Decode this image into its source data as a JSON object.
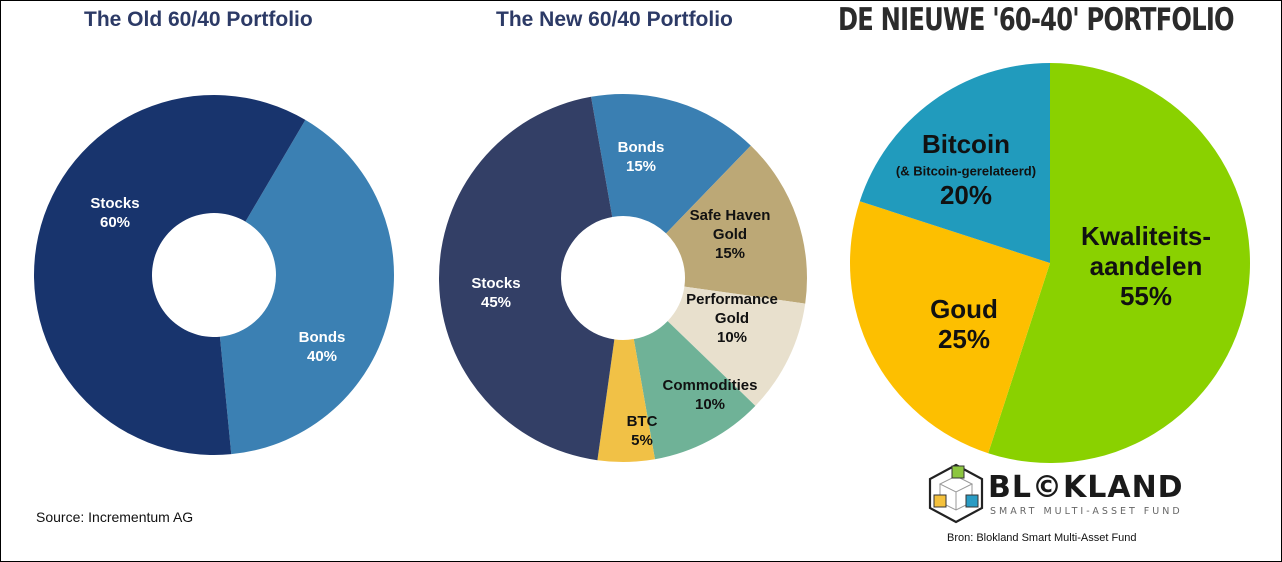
{
  "chart_data": [
    {
      "type": "pie",
      "variant": "donut",
      "title": "The Old 60/40 Portfolio",
      "categories": [
        "Bonds",
        "Stocks"
      ],
      "values": [
        40,
        60
      ],
      "labels": [
        [
          "Bonds",
          "40%"
        ],
        [
          "Stocks",
          "60%"
        ]
      ],
      "colors": [
        "#3b80b3",
        "#18346d"
      ],
      "label_colors": [
        "#ffffff",
        "#ffffff"
      ]
    },
    {
      "type": "pie",
      "variant": "donut",
      "title": "The New 60/40 Portfolio",
      "categories": [
        "Bonds",
        "Safe Haven Gold",
        "Performance Gold",
        "Commodities",
        "BTC",
        "Stocks"
      ],
      "values": [
        15,
        15,
        10,
        10,
        5,
        45
      ],
      "labels": [
        [
          "Bonds",
          "15%"
        ],
        [
          "Safe Haven",
          "Gold",
          "15%"
        ],
        [
          "Performance",
          "Gold",
          "10%"
        ],
        [
          "Commodities",
          "10%"
        ],
        [
          "BTC",
          "5%"
        ],
        [
          "Stocks",
          "45%"
        ]
      ],
      "colors": [
        "#3a7fb2",
        "#bca876",
        "#e8e0cd",
        "#6fb297",
        "#f1c146",
        "#333f66"
      ],
      "label_colors": [
        "#ffffff",
        "#111111",
        "#111111",
        "#111111",
        "#111111",
        "#ffffff"
      ]
    },
    {
      "type": "pie",
      "title": "DE NIEUWE '60-40' PORTFOLIO",
      "categories": [
        "Kwaliteitsaandelen",
        "Goud",
        "Bitcoin (& Bitcoin-gerelateerd)"
      ],
      "values": [
        55,
        25,
        20
      ],
      "labels": [
        [
          "Kwaliteits-",
          "aandelen",
          "55%"
        ],
        [
          "Goud",
          "25%"
        ],
        [
          "Bitcoin",
          "(& Bitcoin-gerelateerd)",
          "20%"
        ]
      ],
      "colors": [
        "#8ad100",
        "#fdbf00",
        "#219bbd"
      ],
      "label_colors": [
        "#111111",
        "#111111",
        "#111111"
      ]
    }
  ],
  "sources": {
    "left": "Source: Incrementum AG",
    "right": "Bron: Blokland Smart Multi-Asset Fund"
  },
  "logo": {
    "name": "BL©KLAND",
    "tagline": "SMART MULTI-ASSET FUND"
  }
}
